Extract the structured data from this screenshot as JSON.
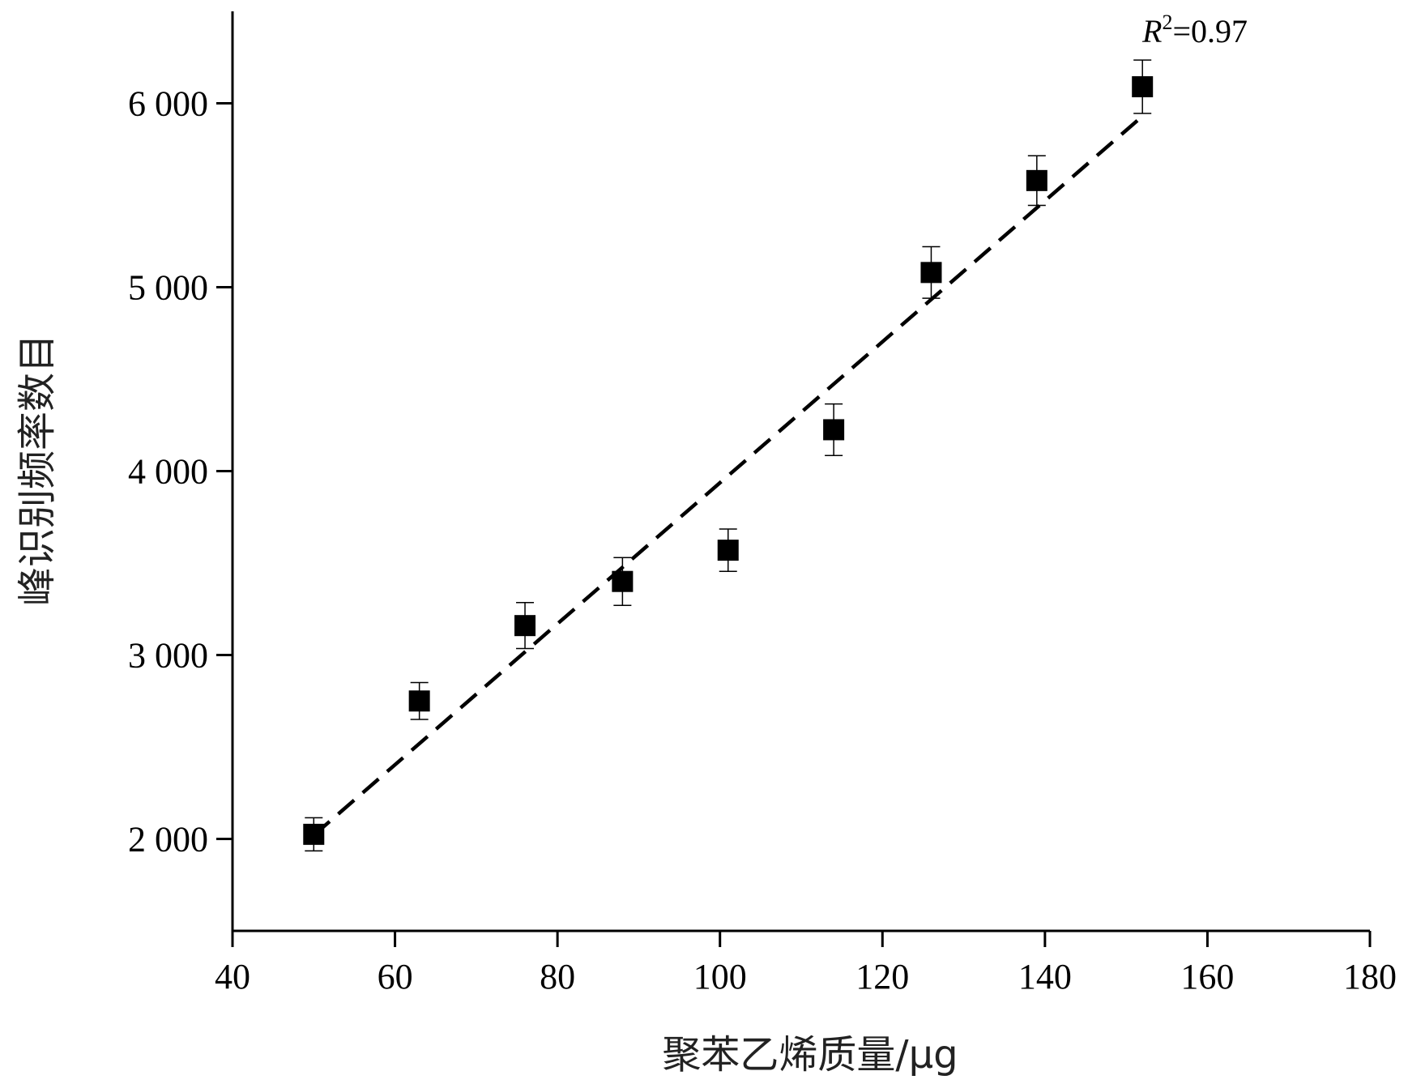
{
  "chart_data": {
    "type": "scatter",
    "xlabel": "聚苯乙烯质量/μg",
    "ylabel": "峰识别频率数目",
    "xlim": [
      40,
      180
    ],
    "ylim": [
      1500,
      6500
    ],
    "xticks": [
      40,
      60,
      80,
      100,
      120,
      140,
      160,
      180
    ],
    "xtick_labels": [
      "40",
      "60",
      "80",
      "100",
      "120",
      "140",
      "160",
      "180"
    ],
    "yticks": [
      2000,
      3000,
      4000,
      5000,
      6000
    ],
    "ytick_labels": [
      "2 000",
      "3 000",
      "4 000",
      "5 000",
      "6 000"
    ],
    "points": [
      {
        "x": 50,
        "y": 2025,
        "err": 90
      },
      {
        "x": 63,
        "y": 2750,
        "err": 100
      },
      {
        "x": 76,
        "y": 3160,
        "err": 125
      },
      {
        "x": 88,
        "y": 3400,
        "err": 130
      },
      {
        "x": 101,
        "y": 3570,
        "err": 115
      },
      {
        "x": 114,
        "y": 4225,
        "err": 140
      },
      {
        "x": 126,
        "y": 5080,
        "err": 140
      },
      {
        "x": 139,
        "y": 5580,
        "err": 135
      },
      {
        "x": 152,
        "y": 6090,
        "err": 145
      }
    ],
    "fit_line": {
      "x": [
        50,
        152
      ],
      "y": [
        2020,
        5930
      ],
      "style": "dashed"
    },
    "annotation": {
      "r_letter": "R",
      "r_sup": "2",
      "r_value": "=0.97"
    },
    "marker": "filled-square",
    "color": "#000000",
    "grid": false,
    "legend": "none"
  }
}
